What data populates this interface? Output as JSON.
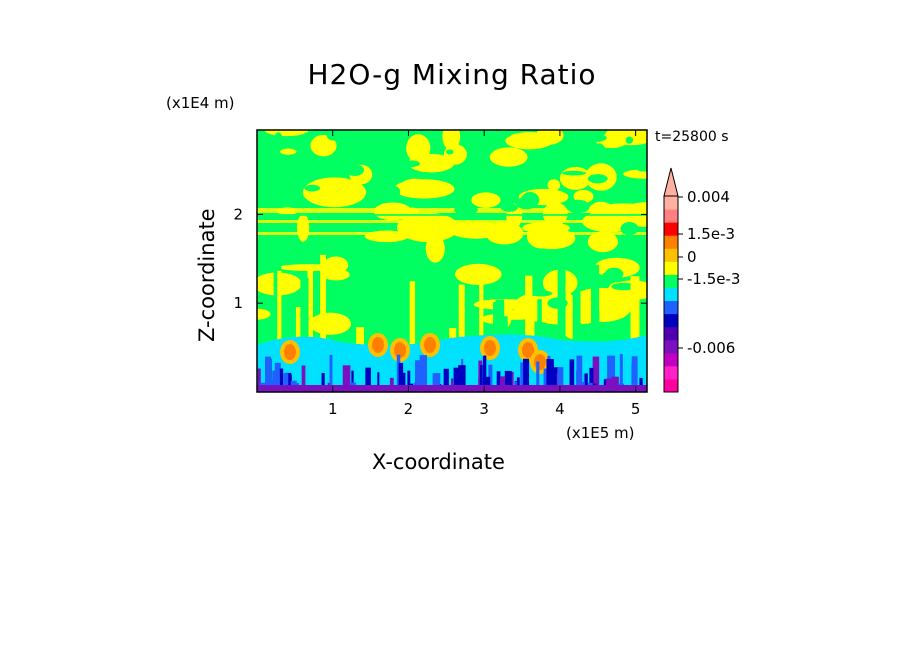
{
  "chart_data": {
    "type": "heatmap",
    "title": "H2O-g Mixing Ratio",
    "xlabel": "X-coordinate",
    "ylabel": "Z-coordinate",
    "x_unit": "(x1E5 m)",
    "y_unit": "(x1E4 m)",
    "annotation": "t=25800 s",
    "xlim": [
      0,
      5.15
    ],
    "ylim": [
      0,
      2.95
    ],
    "x_ticks": [
      {
        "value": 1,
        "label": "1"
      },
      {
        "value": 2,
        "label": "2"
      },
      {
        "value": 3,
        "label": "3"
      },
      {
        "value": 4,
        "label": "4"
      },
      {
        "value": 5,
        "label": "5"
      }
    ],
    "y_ticks": [
      {
        "value": 1,
        "label": "1"
      },
      {
        "value": 2,
        "label": "2"
      }
    ],
    "colorbar": {
      "extend_max": true,
      "ticks": [
        "0.004",
        "1.5e-3",
        "0",
        "-1.5e-3",
        "-0.006"
      ],
      "colors": [
        "#ff00a0",
        "#ff20c8",
        "#c000c0",
        "#7a10c0",
        "#5000b0",
        "#0000c0",
        "#2060ff",
        "#00e0ff",
        "#00ff60",
        "#ffff00",
        "#ffc000",
        "#ff8000",
        "#ff0000",
        "#ff8080",
        "#ffb0a0"
      ]
    }
  }
}
